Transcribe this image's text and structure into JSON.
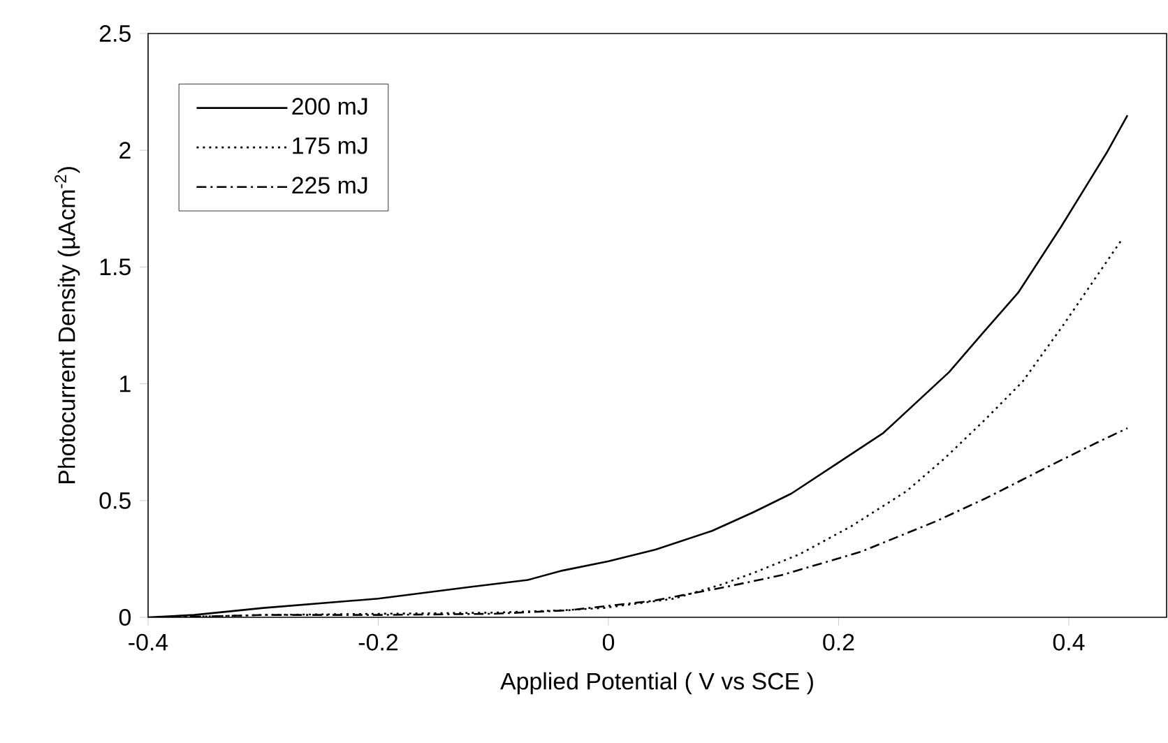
{
  "chart_data": {
    "type": "line",
    "xlabel": "Applied Potential ( V vs SCE )",
    "ylabel": "Photocurrent Density (µAcm$^{-2}$)",
    "xlim": [
      -0.4,
      0.485
    ],
    "ylim": [
      0,
      2.5
    ],
    "xticks": [
      -0.4,
      -0.2,
      0,
      0.2,
      0.4
    ],
    "yticks": [
      0,
      0.5,
      1,
      1.5,
      2,
      2.5
    ],
    "grid": false,
    "legend": "top left",
    "marker": "none",
    "series": [
      {
        "name": "200 mJ",
        "color": "#000000",
        "line_style": "solid",
        "x": [
          -0.4,
          -0.36,
          -0.3,
          -0.2,
          -0.12,
          -0.07,
          -0.04,
          0,
          0.041,
          0.09,
          0.126,
          0.159,
          0.199,
          0.239,
          0.296,
          0.324,
          0.356,
          0.393,
          0.433,
          0.451
        ],
        "values": [
          0,
          0.01,
          0.04,
          0.08,
          0.13,
          0.16,
          0.2,
          0.24,
          0.29,
          0.37,
          0.45,
          0.53,
          0.66,
          0.79,
          1.05,
          1.21,
          1.39,
          1.67,
          1.99,
          2.15
        ]
      },
      {
        "name": "175 mJ",
        "color": "#000000",
        "line_style": "dotted",
        "x": [
          -0.38,
          -0.3,
          -0.2,
          -0.1,
          -0.04,
          -0.004,
          0.057,
          0.098,
          0.126,
          0.166,
          0.211,
          0.259,
          0.292,
          0.328,
          0.36,
          0.395,
          0.445
        ],
        "values": [
          0,
          0.01,
          0.015,
          0.02,
          0.03,
          0.04,
          0.08,
          0.14,
          0.19,
          0.27,
          0.39,
          0.54,
          0.68,
          0.85,
          1.01,
          1.25,
          1.61
        ]
      },
      {
        "name": "225 mJ",
        "color": "#000000",
        "line_style": "dashed",
        "x": [
          -0.38,
          -0.3,
          -0.2,
          -0.1,
          -0.035,
          0.038,
          0.102,
          0.15,
          0.219,
          0.284,
          0.328,
          0.384,
          0.421,
          0.451
        ],
        "values": [
          0,
          0.01,
          0.01,
          0.015,
          0.03,
          0.07,
          0.13,
          0.18,
          0.28,
          0.41,
          0.51,
          0.65,
          0.74,
          0.81
        ]
      }
    ]
  }
}
